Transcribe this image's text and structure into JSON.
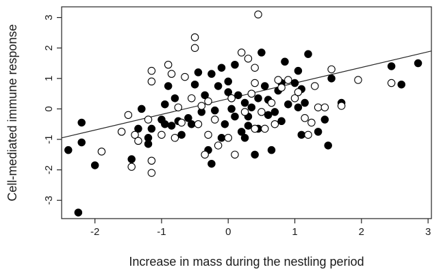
{
  "chart_data": {
    "type": "scatter",
    "title": "",
    "xlabel": "Increase in mass during the nestling period",
    "ylabel": "Cell-mediated immune response",
    "xlim": [
      -2.5,
      3.05
    ],
    "ylim": [
      -3.6,
      3.35
    ],
    "xticks": [
      -2,
      -1,
      0,
      1,
      2,
      3
    ],
    "yticks": [
      -3,
      -2,
      -1,
      0,
      1,
      2,
      3
    ],
    "xtick_labels": [
      "-2",
      "-1",
      "0",
      "1",
      "2",
      "3"
    ],
    "ytick_labels": [
      "-3",
      "-2",
      "-1",
      "0",
      "1",
      "2",
      "3"
    ],
    "grid": false,
    "legend": "none",
    "colors": {
      "filled": "#000000",
      "open": "#ffffff",
      "stroke": "#000000",
      "axis": "#222222",
      "trend": "#222222"
    },
    "trendline": {
      "x": [
        -2.5,
        3.05
      ],
      "y": [
        -0.95,
        1.9
      ]
    },
    "series": [
      {
        "marker": "filled",
        "points": [
          [
            -2.4,
            -1.35
          ],
          [
            -2.2,
            -1.1
          ],
          [
            -2.2,
            -0.45
          ],
          [
            -2.25,
            -3.4
          ],
          [
            -2.0,
            -1.85
          ],
          [
            -1.45,
            -1.65
          ],
          [
            -1.35,
            -0.65
          ],
          [
            -1.3,
            0.0
          ],
          [
            -1.2,
            -0.95
          ],
          [
            -1.2,
            -1.15
          ],
          [
            -1.15,
            -0.65
          ],
          [
            -1.0,
            -0.35
          ],
          [
            -0.95,
            0.15
          ],
          [
            -0.95,
            -0.5
          ],
          [
            -0.9,
            0.75
          ],
          [
            -0.85,
            -0.55
          ],
          [
            -0.8,
            0.35
          ],
          [
            -0.75,
            -0.4
          ],
          [
            -0.7,
            -0.85
          ],
          [
            -0.6,
            -0.3
          ],
          [
            -0.55,
            -0.5
          ],
          [
            -0.5,
            0.8
          ],
          [
            -0.45,
            1.2
          ],
          [
            -0.4,
            -0.1
          ],
          [
            -0.35,
            0.45
          ],
          [
            -0.3,
            -1.35
          ],
          [
            -0.25,
            -1.8
          ],
          [
            -0.25,
            1.15
          ],
          [
            -0.2,
            -0.05
          ],
          [
            -0.15,
            0.75
          ],
          [
            -0.1,
            1.35
          ],
          [
            -0.1,
            -0.95
          ],
          [
            -0.05,
            -0.5
          ],
          [
            0.0,
            0.9
          ],
          [
            0.0,
            0.55
          ],
          [
            0.05,
            0.35
          ],
          [
            0.05,
            0.0
          ],
          [
            0.1,
            1.45
          ],
          [
            0.1,
            -0.25
          ],
          [
            0.15,
            0.45
          ],
          [
            0.2,
            -0.75
          ],
          [
            0.25,
            -0.95
          ],
          [
            0.25,
            0.2
          ],
          [
            0.3,
            -0.25
          ],
          [
            0.3,
            -0.55
          ],
          [
            0.35,
            0.05
          ],
          [
            0.4,
            -1.5
          ],
          [
            0.45,
            0.35
          ],
          [
            0.45,
            -0.65
          ],
          [
            0.5,
            1.85
          ],
          [
            0.55,
            0.75
          ],
          [
            0.6,
            0.3
          ],
          [
            0.6,
            -0.2
          ],
          [
            0.65,
            -1.35
          ],
          [
            0.7,
            -0.1
          ],
          [
            0.75,
            0.6
          ],
          [
            0.8,
            0.85
          ],
          [
            0.8,
            -0.4
          ],
          [
            0.85,
            1.55
          ],
          [
            0.9,
            0.15
          ],
          [
            1.0,
            0.85
          ],
          [
            1.05,
            1.25
          ],
          [
            1.05,
            0.05
          ],
          [
            1.1,
            0.65
          ],
          [
            1.1,
            -0.85
          ],
          [
            1.15,
            0.2
          ],
          [
            1.2,
            1.8
          ],
          [
            1.35,
            -0.75
          ],
          [
            1.45,
            -0.35
          ],
          [
            1.5,
            -1.2
          ],
          [
            1.55,
            1.0
          ],
          [
            1.7,
            0.2
          ],
          [
            2.45,
            1.4
          ],
          [
            2.6,
            0.8
          ],
          [
            2.85,
            1.5
          ]
        ]
      },
      {
        "marker": "open",
        "points": [
          [
            -1.9,
            -1.4
          ],
          [
            -1.6,
            -0.75
          ],
          [
            -1.5,
            -0.2
          ],
          [
            -1.45,
            -1.9
          ],
          [
            -1.4,
            -0.85
          ],
          [
            -1.35,
            -1.05
          ],
          [
            -1.2,
            -0.35
          ],
          [
            -1.15,
            0.9
          ],
          [
            -1.15,
            1.25
          ],
          [
            -1.15,
            -1.7
          ],
          [
            -1.15,
            -2.1
          ],
          [
            -1.0,
            -0.85
          ],
          [
            -0.9,
            1.45
          ],
          [
            -0.85,
            1.15
          ],
          [
            -0.8,
            -0.95
          ],
          [
            -0.75,
            0.05
          ],
          [
            -0.7,
            -0.45
          ],
          [
            -0.65,
            1.05
          ],
          [
            -0.55,
            0.35
          ],
          [
            -0.5,
            2.35
          ],
          [
            -0.5,
            2.0
          ],
          [
            -0.45,
            -0.5
          ],
          [
            -0.4,
            0.1
          ],
          [
            -0.35,
            -1.5
          ],
          [
            -0.3,
            -0.85
          ],
          [
            -0.3,
            0.25
          ],
          [
            -0.2,
            -0.35
          ],
          [
            -0.15,
            -1.2
          ],
          [
            0.0,
            -0.95
          ],
          [
            0.05,
            0.35
          ],
          [
            0.1,
            -1.5
          ],
          [
            0.2,
            1.85
          ],
          [
            0.25,
            -0.1
          ],
          [
            0.3,
            1.65
          ],
          [
            0.35,
            0.5
          ],
          [
            0.4,
            0.85
          ],
          [
            0.4,
            1.35
          ],
          [
            0.4,
            -0.65
          ],
          [
            0.45,
            3.1
          ],
          [
            0.5,
            -0.1
          ],
          [
            0.55,
            -0.65
          ],
          [
            0.65,
            0.2
          ],
          [
            0.7,
            -0.5
          ],
          [
            0.75,
            0.95
          ],
          [
            0.8,
            0.7
          ],
          [
            0.9,
            0.95
          ],
          [
            1.0,
            0.35
          ],
          [
            1.05,
            0.55
          ],
          [
            1.15,
            -0.3
          ],
          [
            1.2,
            -0.85
          ],
          [
            1.25,
            -0.45
          ],
          [
            1.3,
            0.75
          ],
          [
            1.35,
            0.05
          ],
          [
            1.45,
            0.05
          ],
          [
            1.55,
            1.3
          ],
          [
            1.7,
            0.1
          ],
          [
            1.95,
            0.95
          ],
          [
            2.45,
            0.85
          ]
        ]
      }
    ]
  }
}
